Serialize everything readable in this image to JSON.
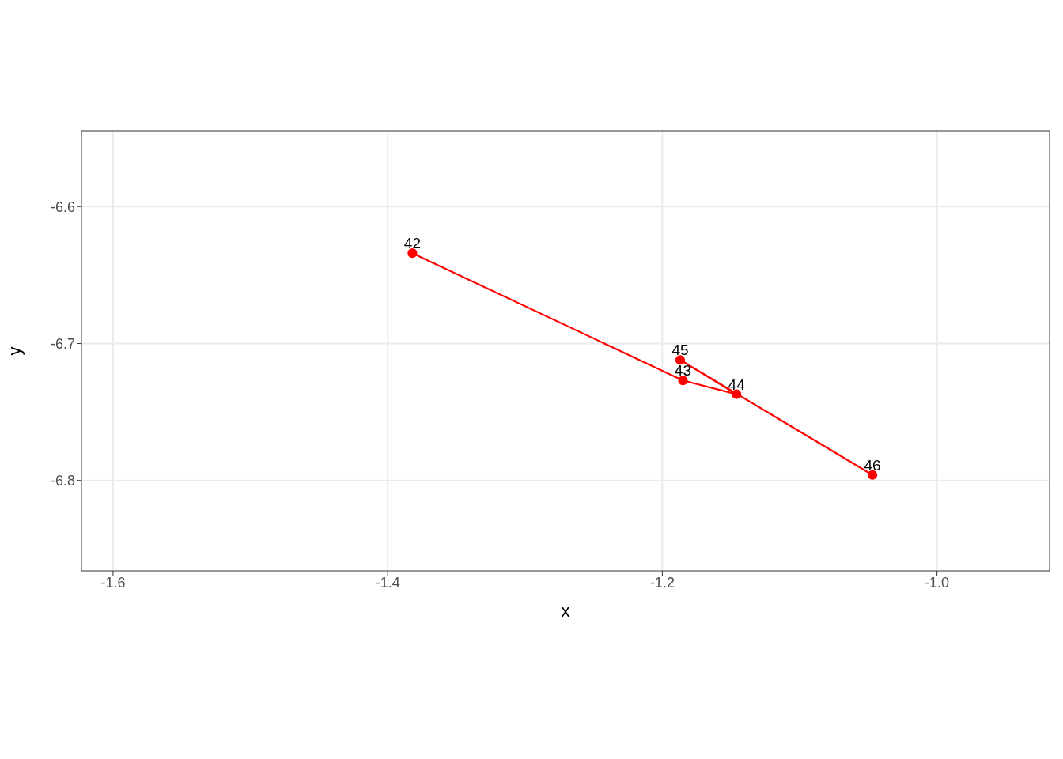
{
  "chart_data": {
    "type": "line",
    "xlabel": "x",
    "ylabel": "y",
    "x": [
      -1.382,
      -1.185,
      -1.146,
      -1.187,
      -1.047
    ],
    "series": [
      {
        "color": "#ff0000",
        "values": [
          -6.634,
          -6.727,
          -6.737,
          -6.712,
          -6.796
        ]
      }
    ],
    "marker": "circle",
    "line_style": "solid",
    "xlim": [
      -1.623,
      -0.918
    ],
    "xticks": [
      {
        "value": -1.6,
        "label": "-1.6"
      },
      {
        "value": -1.4,
        "label": "-1.4"
      },
      {
        "value": -1.2,
        "label": "-1.2"
      },
      {
        "value": -1.0,
        "label": "-1.0"
      }
    ],
    "ylim": [
      -6.866,
      -6.545
    ],
    "yticks": [
      {
        "value": -6.8,
        "label": "-6.8"
      },
      {
        "value": -6.7,
        "label": "-6.7"
      },
      {
        "value": -6.6,
        "label": "-6.6"
      }
    ],
    "grid": true,
    "legend": false,
    "annotations": [
      {
        "text": "42",
        "x": -1.382,
        "y": -6.634
      },
      {
        "text": "43",
        "x": -1.185,
        "y": -6.727
      },
      {
        "text": "44",
        "x": -1.146,
        "y": -6.737
      },
      {
        "text": "45",
        "x": -1.187,
        "y": -6.712
      },
      {
        "text": "46",
        "x": -1.047,
        "y": -6.796
      }
    ]
  }
}
